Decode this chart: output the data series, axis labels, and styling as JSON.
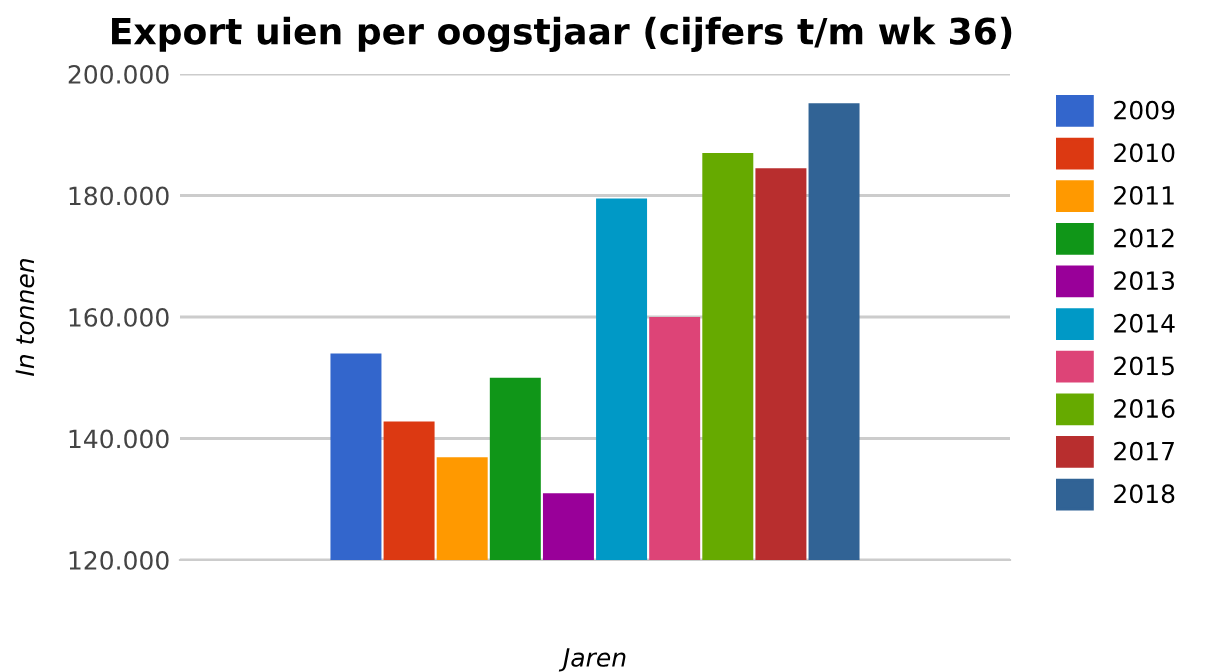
{
  "chart_data": {
    "type": "bar",
    "title": "Export uien per oogstjaar (cijfers t/m wk 36)",
    "xlabel": "Jaren",
    "ylabel": "In tonnen",
    "categories": [
      null
    ],
    "series": [
      {
        "name": "2009",
        "color": "#3366cc",
        "values": [
          154000
        ]
      },
      {
        "name": "2010",
        "color": "#dc3912",
        "values": [
          142800
        ]
      },
      {
        "name": "2011",
        "color": "#ff9900",
        "values": [
          136900
        ]
      },
      {
        "name": "2012",
        "color": "#109618",
        "values": [
          150000
        ]
      },
      {
        "name": "2013",
        "color": "#990099",
        "values": [
          131000
        ]
      },
      {
        "name": "2014",
        "color": "#0099c6",
        "values": [
          179500
        ]
      },
      {
        "name": "2015",
        "color": "#dd4477",
        "values": [
          160000
        ]
      },
      {
        "name": "2016",
        "color": "#66aa00",
        "values": [
          187000
        ]
      },
      {
        "name": "2017",
        "color": "#b82e2e",
        "values": [
          184500
        ]
      },
      {
        "name": "2018",
        "color": "#316395",
        "values": [
          195200
        ]
      }
    ],
    "ylim": [
      120000,
      200000
    ],
    "yticks": [
      {
        "value": 120000,
        "label": "120.000"
      },
      {
        "value": 140000,
        "label": "140.000"
      },
      {
        "value": 160000,
        "label": "160.000"
      },
      {
        "value": 180000,
        "label": "180.000"
      },
      {
        "value": 200000,
        "label": "200.000"
      }
    ],
    "grid": "y",
    "legend": "right"
  }
}
